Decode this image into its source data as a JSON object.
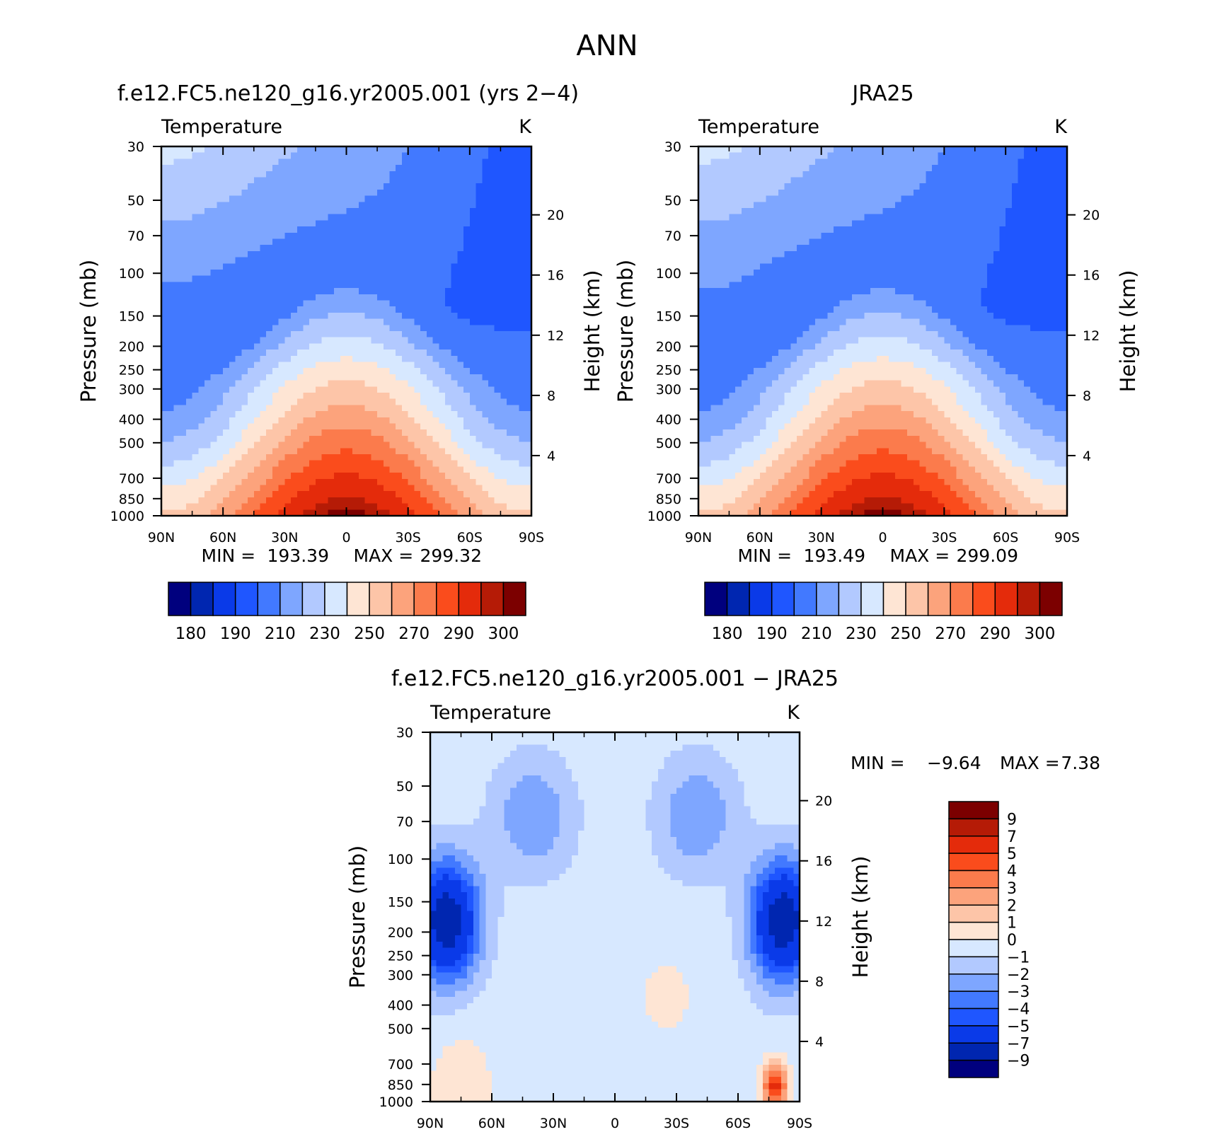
{
  "figure": {
    "title": "ANN",
    "colors": {
      "abs_palette": [
        "#00007e",
        "#0026b0",
        "#0a3ae8",
        "#1f56ff",
        "#4279ff",
        "#7ea6ff",
        "#b2c9ff",
        "#d7e8ff",
        "#fee5d4",
        "#fdc5a8",
        "#fca37c",
        "#fb7b4c",
        "#fa4c1c",
        "#e42b0b",
        "#b51b06",
        "#7c0000"
      ],
      "diff_palette": [
        "#00007e",
        "#0026b0",
        "#0a3ae8",
        "#1f56ff",
        "#4279ff",
        "#7ea6ff",
        "#b2c9ff",
        "#d7e8ff",
        "#fee5d4",
        "#fdc5a8",
        "#fca37c",
        "#fb7b4c",
        "#fa4c1c",
        "#e42b0b",
        "#b51b06",
        "#7c0000"
      ]
    }
  },
  "chart_data": [
    {
      "type": "heatmap",
      "title": "f.e12.FC5.ne120_g16.yr2005.001 (yrs 2−4)",
      "subtitle": "Temperature",
      "units": "K",
      "ylabel": "Pressure (mb)",
      "y2label": "Height (km)",
      "x_ticks": [
        "90N",
        "60N",
        "30N",
        "0",
        "30S",
        "60S",
        "90S"
      ],
      "x_values": [
        90,
        60,
        30,
        0,
        -30,
        -60,
        -90
      ],
      "y_ticks": [
        "30",
        "50",
        "70",
        "100",
        "150",
        "200",
        "250",
        "300",
        "400",
        "500",
        "700",
        "850",
        "1000"
      ],
      "y_values": [
        30,
        50,
        70,
        100,
        150,
        200,
        250,
        300,
        400,
        500,
        700,
        850,
        1000
      ],
      "y2_ticks": [
        "20",
        "16",
        "12",
        "8",
        "4"
      ],
      "y2_values": [
        20,
        16,
        12,
        8,
        4
      ],
      "min_label": "MIN =",
      "min": "193.39",
      "max_label": "MAX =",
      "max": "299.32",
      "colorbar": {
        "levels": [
          175,
          180,
          185,
          190,
          200,
          210,
          220,
          230,
          240,
          250,
          260,
          270,
          280,
          290,
          295,
          300
        ],
        "labels": [
          "180",
          "190",
          "210",
          "230",
          "250",
          "270",
          "290",
          "300"
        ]
      },
      "field": "model"
    },
    {
      "type": "heatmap",
      "title": "JRA25",
      "subtitle": "Temperature",
      "units": "K",
      "ylabel": "Pressure (mb)",
      "y2label": "Height (km)",
      "x_ticks": [
        "90N",
        "60N",
        "30N",
        "0",
        "30S",
        "60S",
        "90S"
      ],
      "x_values": [
        90,
        60,
        30,
        0,
        -30,
        -60,
        -90
      ],
      "y_ticks": [
        "30",
        "50",
        "70",
        "100",
        "150",
        "200",
        "250",
        "300",
        "400",
        "500",
        "700",
        "850",
        "1000"
      ],
      "y_values": [
        30,
        50,
        70,
        100,
        150,
        200,
        250,
        300,
        400,
        500,
        700,
        850,
        1000
      ],
      "y2_ticks": [
        "20",
        "16",
        "12",
        "8",
        "4"
      ],
      "y2_values": [
        20,
        16,
        12,
        8,
        4
      ],
      "min_label": "MIN =",
      "min": "193.49",
      "max_label": "MAX =",
      "max": "299.09",
      "colorbar": {
        "levels": [
          175,
          180,
          185,
          190,
          200,
          210,
          220,
          230,
          240,
          250,
          260,
          270,
          280,
          290,
          295,
          300
        ],
        "labels": [
          "180",
          "190",
          "210",
          "230",
          "250",
          "270",
          "290",
          "300"
        ]
      },
      "field": "obs"
    },
    {
      "type": "heatmap",
      "title": "f.e12.FC5.ne120_g16.yr2005.001 − JRA25",
      "subtitle": "Temperature",
      "units": "K",
      "ylabel": "Pressure (mb)",
      "y2label": "Height (km)",
      "x_ticks": [
        "90N",
        "60N",
        "30N",
        "0",
        "30S",
        "60S",
        "90S"
      ],
      "x_values": [
        90,
        60,
        30,
        0,
        -30,
        -60,
        -90
      ],
      "y_ticks": [
        "30",
        "50",
        "70",
        "100",
        "150",
        "200",
        "250",
        "300",
        "400",
        "500",
        "700",
        "850",
        "1000"
      ],
      "y_values": [
        30,
        50,
        70,
        100,
        150,
        200,
        250,
        300,
        400,
        500,
        700,
        850,
        1000
      ],
      "y2_ticks": [
        "20",
        "16",
        "12",
        "8",
        "4"
      ],
      "y2_values": [
        20,
        16,
        12,
        8,
        4
      ],
      "min_label": "MIN =",
      "min": "−9.64",
      "max_label": "MAX =",
      "max": "7.38",
      "colorbar": {
        "levels": [
          -9,
          -7,
          -5,
          -4,
          -3,
          -2,
          -1,
          0,
          1,
          2,
          3,
          4,
          5,
          7,
          9
        ],
        "labels": [
          "9",
          "7",
          "5",
          "4",
          "3",
          "2",
          "1",
          "0",
          "−1",
          "−2",
          "−3",
          "−4",
          "−5",
          "−7",
          "−9"
        ]
      },
      "field": "diff"
    }
  ]
}
